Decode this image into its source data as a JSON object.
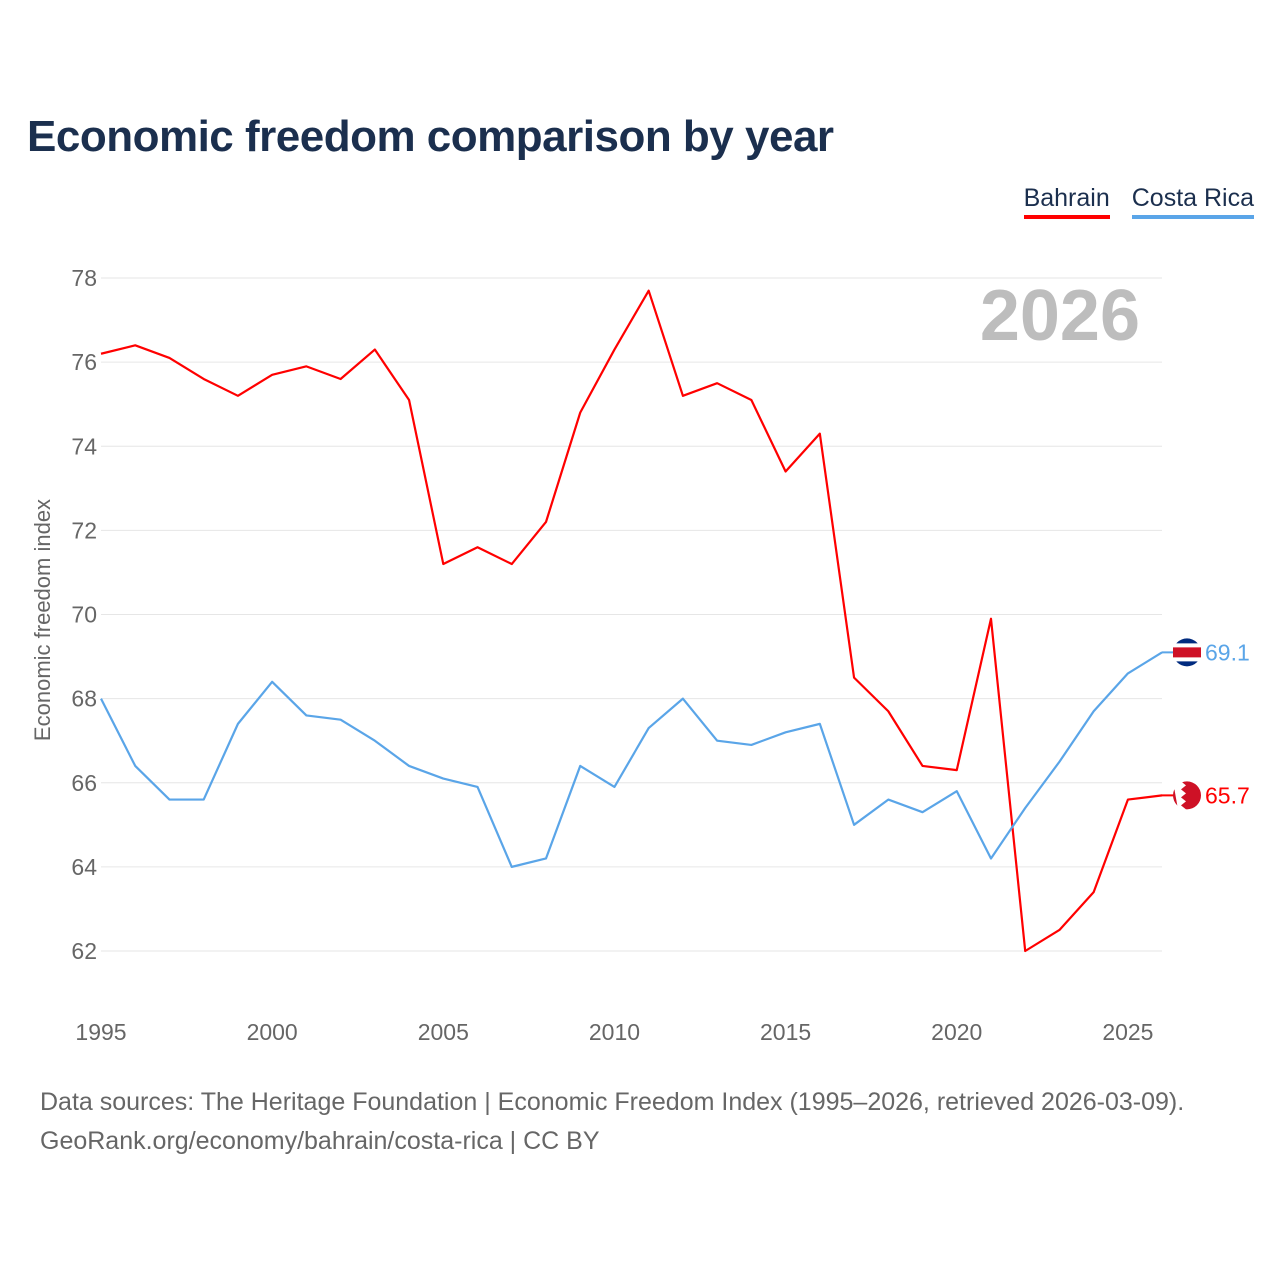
{
  "chart_data": {
    "type": "line",
    "title": "Economic freedom comparison by year",
    "xlabel": "",
    "ylabel": "Economic freedom index",
    "xlim": [
      1995,
      2026
    ],
    "ylim": [
      61,
      79
    ],
    "x_ticks": [
      1995,
      2000,
      2005,
      2010,
      2015,
      2020,
      2025
    ],
    "y_ticks": [
      62,
      64,
      66,
      68,
      70,
      72,
      74,
      76,
      78
    ],
    "grid": true,
    "legend_position": "top-right",
    "year_watermark": "2026",
    "x": [
      1995,
      1996,
      1997,
      1998,
      1999,
      2000,
      2001,
      2002,
      2003,
      2004,
      2005,
      2006,
      2007,
      2008,
      2009,
      2010,
      2011,
      2012,
      2013,
      2014,
      2015,
      2016,
      2017,
      2018,
      2019,
      2020,
      2021,
      2022,
      2023,
      2024,
      2025,
      2026
    ],
    "series": [
      {
        "name": "Bahrain",
        "color": "#ff0000",
        "end_label": "65.7",
        "values": [
          76.2,
          76.4,
          76.1,
          75.6,
          75.2,
          75.7,
          75.9,
          75.6,
          76.3,
          75.1,
          71.2,
          71.6,
          71.2,
          72.2,
          74.8,
          76.3,
          77.7,
          75.2,
          75.5,
          75.1,
          73.4,
          74.3,
          68.5,
          67.7,
          66.4,
          66.3,
          69.9,
          62.0,
          62.5,
          63.4,
          65.6,
          65.7
        ]
      },
      {
        "name": "Costa Rica",
        "color": "#5aa5e8",
        "end_label": "69.1",
        "values": [
          68.0,
          66.4,
          65.6,
          65.6,
          67.4,
          68.4,
          67.6,
          67.5,
          67.0,
          66.4,
          66.1,
          65.9,
          64.0,
          64.2,
          66.4,
          65.9,
          67.3,
          68.0,
          67.0,
          66.9,
          67.2,
          67.4,
          65.0,
          65.6,
          65.3,
          65.8,
          64.2,
          65.4,
          66.5,
          67.7,
          68.6,
          69.1
        ]
      }
    ]
  },
  "footer": {
    "line1": "Data sources: The Heritage Foundation | Economic Freedom Index (1995–2026, retrieved 2026-03-09).",
    "line2": "GeoRank.org/economy/bahrain/costa-rica | CC BY"
  }
}
